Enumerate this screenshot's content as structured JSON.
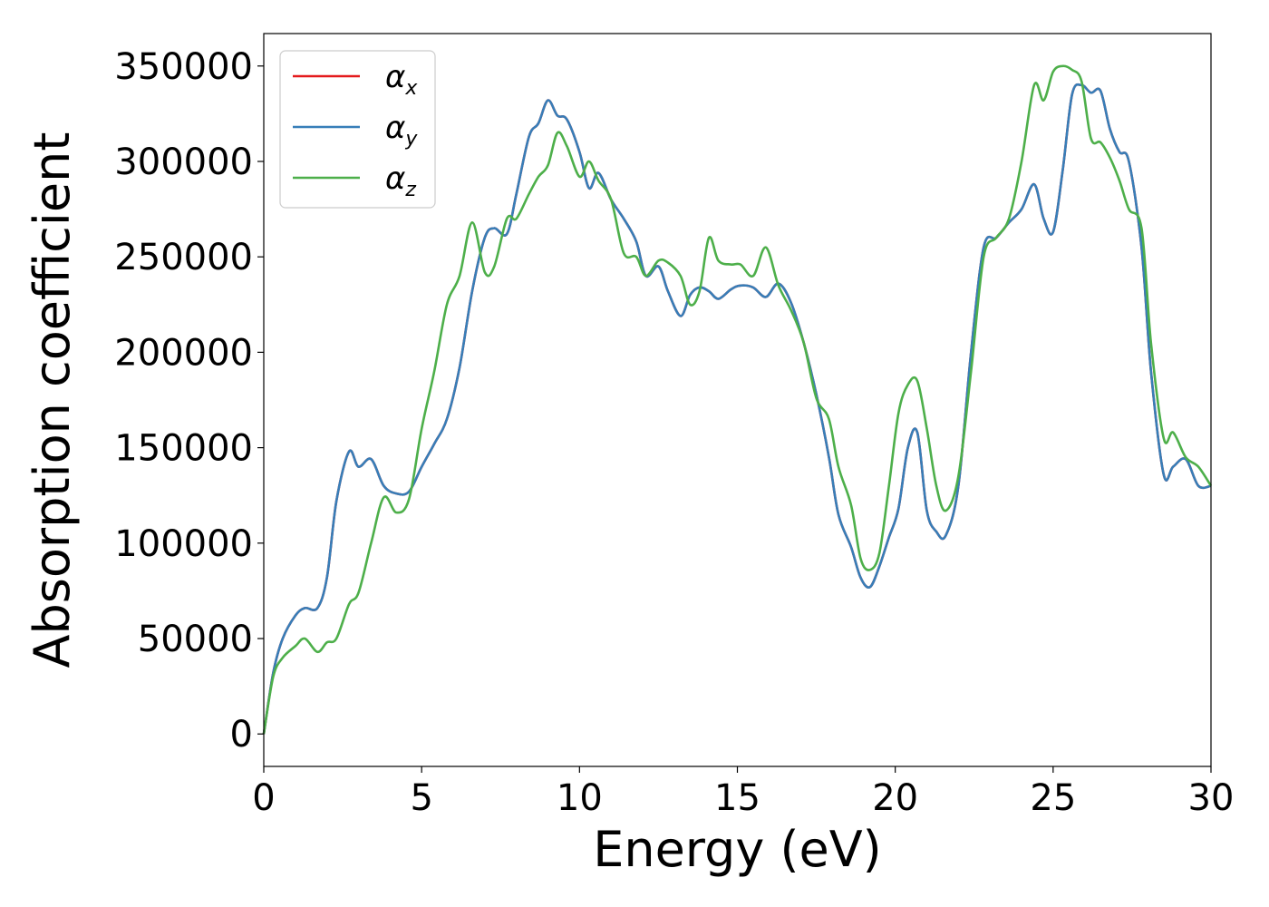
{
  "chart_data": {
    "type": "line",
    "xlabel": "Energy (eV)",
    "ylabel": "Absorption coefficient",
    "xlim": [
      0,
      30
    ],
    "ylim": [
      -17000,
      367000
    ],
    "xticks": [
      "0",
      "5",
      "10",
      "15",
      "20",
      "25",
      "30"
    ],
    "yticks": [
      "0",
      "50000",
      "100000",
      "150000",
      "200000",
      "250000",
      "300000",
      "350000"
    ],
    "grid": false,
    "legend_position": "top-left",
    "x": [
      0,
      0.3,
      0.6,
      1.0,
      1.3,
      1.7,
      2.0,
      2.3,
      2.7,
      3.0,
      3.4,
      3.8,
      4.2,
      4.6,
      5.0,
      5.4,
      5.8,
      6.2,
      6.6,
      7.0,
      7.3,
      7.7,
      8.0,
      8.4,
      8.7,
      9.0,
      9.3,
      9.6,
      10.0,
      10.3,
      10.6,
      11.0,
      11.4,
      11.8,
      12.1,
      12.5,
      12.8,
      13.2,
      13.5,
      13.8,
      14.1,
      14.4,
      14.8,
      15.1,
      15.5,
      15.9,
      16.3,
      16.7,
      17.1,
      17.5,
      17.9,
      18.2,
      18.6,
      18.9,
      19.2,
      19.5,
      19.8,
      20.1,
      20.4,
      20.7,
      21.0,
      21.3,
      21.6,
      22.0,
      22.4,
      22.8,
      23.2,
      23.6,
      24.0,
      24.4,
      24.7,
      25.0,
      25.3,
      25.6,
      25.9,
      26.2,
      26.5,
      26.8,
      27.1,
      27.4,
      27.8,
      28.1,
      28.5,
      28.8,
      29.2,
      29.6,
      30.0
    ],
    "series": [
      {
        "name": "α",
        "subscript": "x",
        "color": "#e41a1c",
        "values": [
          0,
          32000,
          50000,
          62000,
          66000,
          66000,
          82000,
          122000,
          148000,
          140000,
          144000,
          130000,
          126000,
          127000,
          140000,
          152000,
          165000,
          192000,
          232000,
          260000,
          265000,
          262000,
          283000,
          313000,
          320000,
          332000,
          324000,
          322000,
          305000,
          286000,
          294000,
          280000,
          270000,
          258000,
          240000,
          245000,
          232000,
          219000,
          230000,
          234000,
          232000,
          228000,
          233000,
          235000,
          234000,
          229000,
          236000,
          226000,
          205000,
          178000,
          145000,
          115000,
          98000,
          82000,
          77000,
          88000,
          103000,
          118000,
          150000,
          158000,
          117000,
          106000,
          104000,
          130000,
          200000,
          255000,
          260000,
          268000,
          275000,
          288000,
          270000,
          263000,
          295000,
          335000,
          340000,
          336000,
          337000,
          317000,
          305000,
          300000,
          255000,
          190000,
          136000,
          140000,
          144000,
          130000,
          130000
        ]
      },
      {
        "name": "α",
        "subscript": "y",
        "color": "#377eb8",
        "values": [
          0,
          32000,
          50000,
          62000,
          66000,
          66000,
          82000,
          122000,
          148000,
          140000,
          144000,
          130000,
          126000,
          127000,
          140000,
          152000,
          165000,
          192000,
          232000,
          260000,
          265000,
          262000,
          283000,
          313000,
          320000,
          332000,
          324000,
          322000,
          305000,
          286000,
          294000,
          280000,
          270000,
          258000,
          240000,
          245000,
          232000,
          219000,
          230000,
          234000,
          232000,
          228000,
          233000,
          235000,
          234000,
          229000,
          236000,
          226000,
          205000,
          178000,
          145000,
          115000,
          98000,
          82000,
          77000,
          88000,
          103000,
          118000,
          150000,
          158000,
          117000,
          106000,
          104000,
          130000,
          200000,
          255000,
          260000,
          268000,
          275000,
          288000,
          270000,
          263000,
          295000,
          335000,
          340000,
          336000,
          337000,
          317000,
          305000,
          300000,
          255000,
          190000,
          136000,
          140000,
          144000,
          130000,
          130000
        ]
      },
      {
        "name": "α",
        "subscript": "z",
        "color": "#4daf4a",
        "values": [
          0,
          30000,
          40000,
          46000,
          50000,
          43000,
          48000,
          50000,
          68000,
          74000,
          100000,
          124000,
          116000,
          123000,
          160000,
          190000,
          225000,
          240000,
          268000,
          242000,
          245000,
          270000,
          270000,
          283000,
          292000,
          298000,
          315000,
          308000,
          292000,
          300000,
          290000,
          280000,
          252000,
          250000,
          240000,
          248000,
          247000,
          240000,
          225000,
          232000,
          260000,
          248000,
          246000,
          246000,
          240000,
          255000,
          235000,
          222000,
          205000,
          176000,
          165000,
          140000,
          120000,
          92000,
          86000,
          95000,
          130000,
          168000,
          183000,
          185000,
          160000,
          130000,
          117000,
          135000,
          190000,
          250000,
          260000,
          270000,
          300000,
          340000,
          332000,
          347000,
          350000,
          348000,
          342000,
          312000,
          310000,
          302000,
          290000,
          275000,
          265000,
          205000,
          155000,
          158000,
          145000,
          140000,
          130000
        ]
      }
    ]
  }
}
